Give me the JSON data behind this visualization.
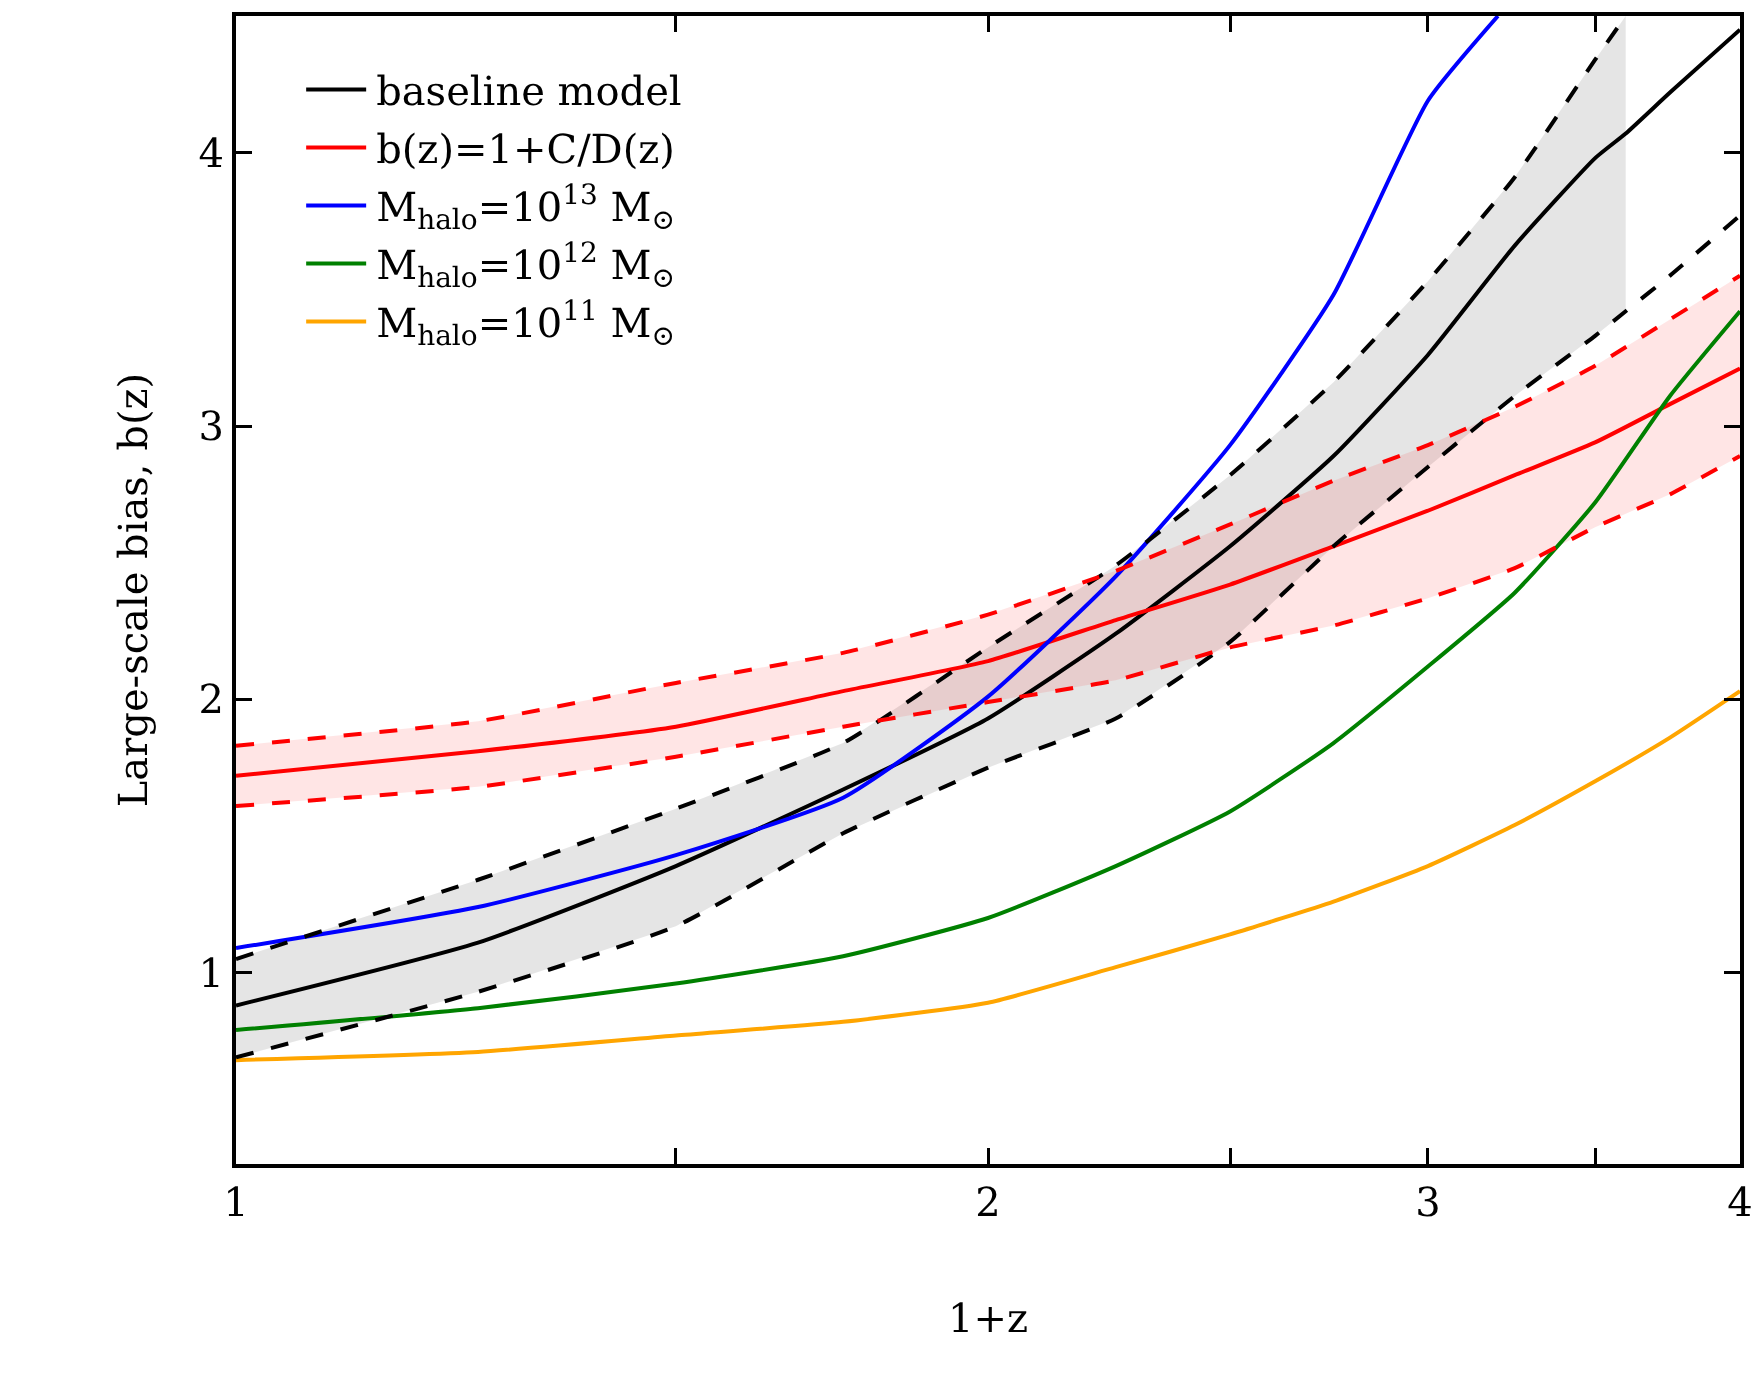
{
  "chart_data": {
    "type": "line",
    "xlabel": "1+z",
    "ylabel": "Large-scale bias, b(z)",
    "log": "x",
    "x": [
      1,
      1.25,
      1.5,
      1.75,
      2,
      2.25,
      2.5,
      2.75,
      3,
      3.25,
      3.5,
      3.75,
      4
    ],
    "xlim": [
      1,
      4
    ],
    "xticks": [
      1,
      {
        "value": 1.5,
        "label": null
      },
      2,
      {
        "value": 2.5,
        "label": null
      },
      3,
      {
        "value": 3.5,
        "label": null
      },
      4
    ],
    "ylim": [
      0.3,
      4.5
    ],
    "yticks": [
      1,
      2,
      3,
      4
    ],
    "grid": false,
    "legend": "top left",
    "marker": "none",
    "line_style": "solid",
    "series": [
      {
        "name": "baseline model",
        "color": "#000000",
        "x": [
          1,
          1.25,
          1.5,
          1.75,
          2,
          2.25,
          2.5,
          2.75,
          3,
          3.25,
          3.5,
          3.6,
          3.75,
          4
        ],
        "values": [
          0.88,
          1.11,
          1.39,
          1.67,
          1.93,
          2.24,
          2.56,
          2.89,
          3.26,
          3.66,
          3.98,
          4.07,
          4.22,
          4.45
        ],
        "lower": [
          0.69,
          0.93,
          1.17,
          1.51,
          1.75,
          1.93,
          2.21,
          2.56,
          2.85,
          3.11,
          3.33,
          3.42,
          null,
          null
        ],
        "upper": [
          1.05,
          1.34,
          1.6,
          1.84,
          2.19,
          2.49,
          2.82,
          3.16,
          3.53,
          3.91,
          4.34,
          4.5,
          null,
          null
        ]
      },
      {
        "name": "b(z)=1+C/D(z)",
        "color": "#ff0000",
        "values": [
          1.72,
          1.81,
          1.9,
          2.03,
          2.14,
          2.29,
          2.42,
          2.56,
          2.69,
          2.82,
          2.94,
          3.08,
          3.21
        ],
        "lower": [
          1.61,
          1.68,
          1.79,
          1.9,
          1.99,
          2.07,
          2.19,
          2.27,
          2.37,
          2.48,
          2.63,
          2.75,
          2.89
        ],
        "upper": [
          1.83,
          1.92,
          2.06,
          2.17,
          2.31,
          2.47,
          2.64,
          2.8,
          2.93,
          3.07,
          3.22,
          3.39,
          3.55
        ]
      },
      {
        "name": "M$_{halo}$=10$^{13}$ M$_{⊙}$",
        "color": "#0000ff",
        "x": [
          1,
          1.25,
          1.5,
          1.75,
          2,
          2.25,
          2.5,
          2.75,
          3,
          3.2
        ],
        "values": [
          1.09,
          1.24,
          1.43,
          1.64,
          2.01,
          2.45,
          2.93,
          3.48,
          4.19,
          4.5
        ]
      },
      {
        "name": "M$_{halo}$=10$^{12}$ M$_{⊙}$",
        "color": "#008000",
        "values": [
          0.79,
          0.87,
          0.96,
          1.06,
          1.2,
          1.39,
          1.59,
          1.84,
          2.12,
          2.39,
          2.72,
          3.11,
          3.42
        ]
      },
      {
        "name": "M$_{halo}$=10$^{11}$ M$_{⊙}$",
        "color": "#ffa500",
        "values": [
          0.68,
          0.71,
          0.77,
          0.82,
          0.89,
          1.02,
          1.14,
          1.26,
          1.39,
          1.54,
          1.7,
          1.86,
          2.03
        ]
      },
      {
        "color": "#000000",
        "line_style": "dashed",
        "x": [
          1,
          1.25,
          1.5,
          1.75,
          2,
          2.25,
          2.5,
          2.75,
          3,
          3.25,
          3.5,
          3.6,
          3.75,
          4
        ],
        "values": [
          0.69,
          0.93,
          1.17,
          1.51,
          1.75,
          1.93,
          2.21,
          2.56,
          2.85,
          3.11,
          3.33,
          3.42,
          3.55,
          3.77
        ]
      },
      {
        "color": "#000000",
        "line_style": "dashed",
        "x": [
          1,
          1.25,
          1.5,
          1.75,
          2,
          2.25,
          2.5,
          2.75,
          3,
          3.25,
          3.5,
          3.6
        ],
        "values": [
          1.05,
          1.34,
          1.6,
          1.84,
          2.19,
          2.49,
          2.82,
          3.16,
          3.53,
          3.91,
          4.34,
          4.5
        ]
      },
      {
        "color": "#ff0000",
        "line_style": "dashed",
        "values": [
          1.61,
          1.68,
          1.79,
          1.9,
          1.99,
          2.07,
          2.19,
          2.27,
          2.37,
          2.48,
          2.63,
          2.75,
          2.89
        ]
      },
      {
        "color": "#ff0000",
        "line_style": "dashed",
        "values": [
          1.83,
          1.92,
          2.06,
          2.17,
          2.31,
          2.47,
          2.64,
          2.8,
          2.93,
          3.07,
          3.22,
          3.39,
          3.55
        ]
      }
    ]
  }
}
